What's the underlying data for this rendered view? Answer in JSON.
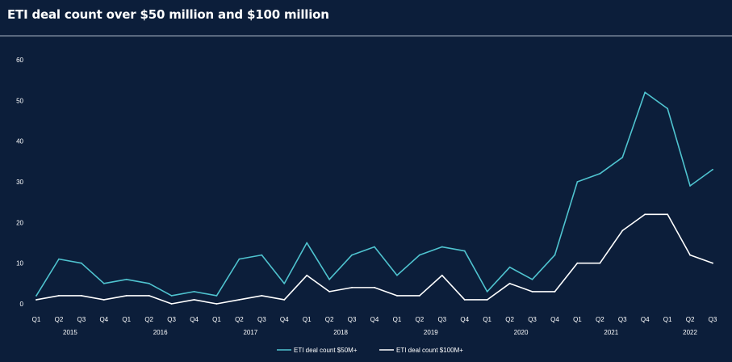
{
  "chart_data": {
    "type": "line",
    "title": "ETI deal count over $50 million and $100 million",
    "xlabel": "",
    "ylabel": "",
    "ylim": [
      0,
      60
    ],
    "yticks": [
      0,
      10,
      20,
      30,
      40,
      50,
      60
    ],
    "grid": false,
    "legend_position": "bottom-center",
    "quarter_labels": [
      "Q1",
      "Q2",
      "Q3",
      "Q4",
      "Q1",
      "Q2",
      "Q3",
      "Q4",
      "Q1",
      "Q2",
      "Q3",
      "Q4",
      "Q1",
      "Q2",
      "Q3",
      "Q4",
      "Q1",
      "Q2",
      "Q3",
      "Q4",
      "Q1",
      "Q2",
      "Q3",
      "Q4",
      "Q1",
      "Q2",
      "Q3",
      "Q4",
      "Q1",
      "Q2",
      "Q3"
    ],
    "years": [
      {
        "label": "2015",
        "start": 0,
        "end": 3
      },
      {
        "label": "2016",
        "start": 4,
        "end": 7
      },
      {
        "label": "2017",
        "start": 8,
        "end": 11
      },
      {
        "label": "2018",
        "start": 12,
        "end": 15
      },
      {
        "label": "2019",
        "start": 16,
        "end": 19
      },
      {
        "label": "2020",
        "start": 20,
        "end": 23
      },
      {
        "label": "2021",
        "start": 24,
        "end": 27
      },
      {
        "label": "2022",
        "start": 28,
        "end": 30
      }
    ],
    "series": [
      {
        "name": "ETI deal count $50M+",
        "color": "#4fc3cf",
        "values": [
          2,
          11,
          10,
          5,
          6,
          5,
          2,
          3,
          2,
          11,
          12,
          5,
          15,
          6,
          12,
          14,
          7,
          12,
          14,
          13,
          3,
          9,
          6,
          12,
          30,
          32,
          36,
          52,
          48,
          29,
          33
        ]
      },
      {
        "name": "ETI deal count $100M+",
        "color": "#ffffff",
        "values": [
          1,
          2,
          2,
          1,
          2,
          2,
          0,
          1,
          0,
          1,
          2,
          1,
          7,
          3,
          4,
          4,
          2,
          2,
          7,
          1,
          1,
          5,
          3,
          3,
          10,
          10,
          18,
          22,
          22,
          12,
          10
        ]
      }
    ]
  }
}
